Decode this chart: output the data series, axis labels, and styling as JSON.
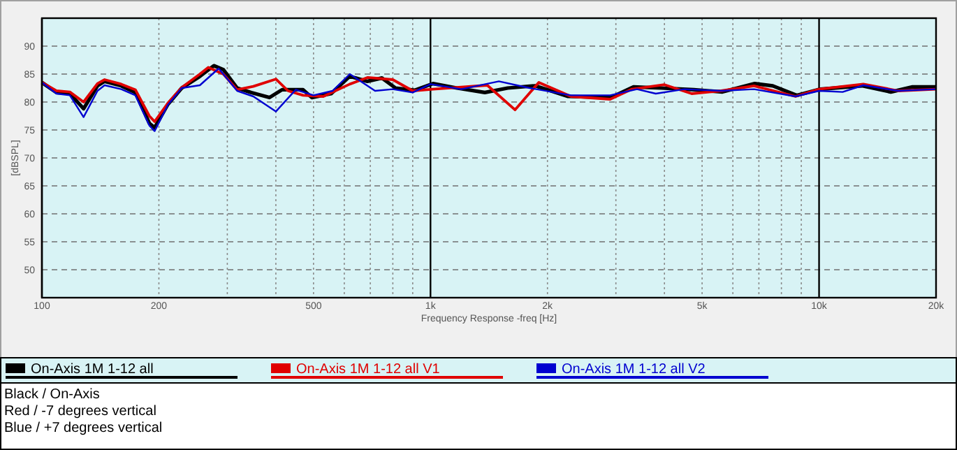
{
  "chart_data": {
    "type": "line",
    "xlabel": "Frequency Response -freq [Hz]",
    "ylabel": "[dBSPL]",
    "log": "x",
    "grid": true,
    "legend": "bottom",
    "marker": "none",
    "line_style": "solid",
    "xlim": [
      100,
      20000
    ],
    "ylim": [
      45,
      95
    ],
    "xticks": [
      100,
      200,
      {
        "value": 300,
        "label": null
      },
      {
        "value": 400,
        "label": null
      },
      500,
      {
        "value": 600,
        "label": null
      },
      {
        "value": 700,
        "label": null
      },
      {
        "value": 800,
        "label": null
      },
      {
        "value": 900,
        "label": null
      },
      {
        "value": 1000,
        "label": "1k"
      },
      {
        "value": 2000,
        "label": "2k"
      },
      {
        "value": 3000,
        "label": null
      },
      {
        "value": 4000,
        "label": null
      },
      {
        "value": 5000,
        "label": "5k"
      },
      {
        "value": 6000,
        "label": null
      },
      {
        "value": 7000,
        "label": null
      },
      {
        "value": 8000,
        "label": null
      },
      {
        "value": 9000,
        "label": null
      },
      {
        "value": 10000,
        "label": "10k"
      },
      {
        "value": 20000,
        "label": "20k"
      }
    ],
    "yticks": [
      50,
      55,
      60,
      65,
      70,
      75,
      80,
      85,
      90
    ],
    "annotations": [
      "Black / On-Axis",
      "Red / -7 degrees vertical",
      "Blue / +7 degrees vertical"
    ],
    "series": [
      {
        "name": "On-Axis 1M 1-12 all",
        "color": "#000000",
        "x": [
          100,
          109,
          118,
          128,
          139,
          145,
          160,
          174,
          189,
          195,
          211,
          229,
          255,
          277,
          293,
          318,
          346,
          385,
          415,
          470,
          495,
          555,
          620,
          688,
          750,
          813,
          910,
          1015,
          1170,
          1380,
          1580,
          1860,
          2260,
          2910,
          3330,
          3930,
          4760,
          5640,
          6830,
          7600,
          8760,
          10070,
          12900,
          15300,
          17400,
          20000
        ],
        "values": [
          83.5,
          81.7,
          81.5,
          78.8,
          82.9,
          83.7,
          82.9,
          81.7,
          76.2,
          75.4,
          79.6,
          82.5,
          84.6,
          86.5,
          85.8,
          82.5,
          81.7,
          80.8,
          82.2,
          82.2,
          80.8,
          81.5,
          84.6,
          83.7,
          84.3,
          82.5,
          82.1,
          83.3,
          82.5,
          81.7,
          82.5,
          82.9,
          81.0,
          80.8,
          82.7,
          82.5,
          82.2,
          81.8,
          83.3,
          82.9,
          81.2,
          82.3,
          82.9,
          81.8,
          82.7,
          82.7
        ]
      },
      {
        "name": "On-Axis 1M 1-12 all V1",
        "color": "#e00000",
        "x": [
          100,
          109,
          118,
          128,
          139,
          145,
          160,
          174,
          189,
          195,
          211,
          229,
          255,
          268,
          293,
          318,
          350,
          400,
          430,
          470,
          530,
          620,
          690,
          800,
          900,
          1015,
          1400,
          1650,
          1900,
          2300,
          2900,
          3300,
          4000,
          4700,
          5600,
          6800,
          8700,
          10000,
          13000,
          16000,
          20000
        ],
        "values": [
          83.5,
          82.0,
          81.8,
          80.0,
          83.3,
          84.0,
          83.2,
          82.2,
          77.5,
          76.5,
          79.8,
          82.6,
          85.0,
          86.2,
          85.0,
          82.2,
          82.8,
          84.1,
          82.0,
          81.2,
          81.0,
          83.2,
          84.4,
          84.0,
          82.0,
          82.3,
          83.0,
          78.6,
          83.5,
          81.0,
          80.5,
          82.3,
          83.1,
          81.5,
          82.0,
          82.9,
          81.0,
          82.3,
          83.2,
          82.0,
          82.3
        ]
      },
      {
        "name": "On-Axis 1M 1-12 all V2",
        "color": "#0000d0",
        "x": [
          100,
          109,
          118,
          128,
          139,
          145,
          160,
          174,
          189,
          195,
          211,
          229,
          255,
          285,
          318,
          350,
          400,
          450,
          500,
          560,
          620,
          720,
          800,
          900,
          1000,
          1200,
          1500,
          1800,
          2300,
          2900,
          3400,
          3800,
          4500,
          5600,
          6800,
          8700,
          10000,
          11500,
          13000,
          16000,
          20000
        ],
        "values": [
          83.5,
          81.5,
          81.2,
          77.3,
          82.0,
          83.0,
          82.3,
          81.2,
          75.8,
          74.8,
          79.5,
          82.5,
          83.0,
          86.0,
          82.0,
          81.0,
          78.3,
          82.2,
          81.2,
          82.0,
          85.0,
          82.0,
          82.3,
          81.7,
          83.2,
          82.3,
          83.7,
          82.5,
          81.2,
          81.2,
          82.3,
          81.5,
          82.3,
          82.0,
          82.3,
          81.0,
          82.0,
          81.8,
          83.0,
          82.0,
          82.3
        ]
      }
    ]
  }
}
